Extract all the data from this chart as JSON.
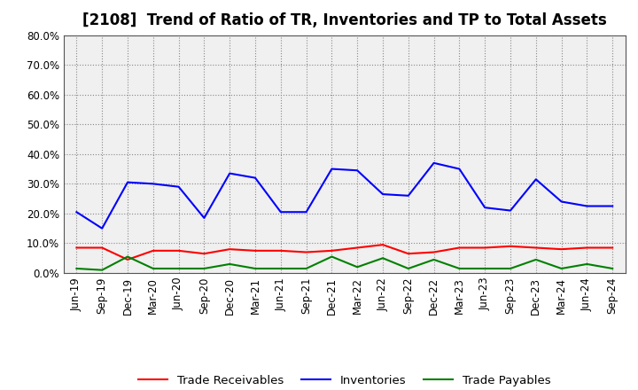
{
  "title": "[2108]  Trend of Ratio of TR, Inventories and TP to Total Assets",
  "x_labels": [
    "Jun-19",
    "Sep-19",
    "Dec-19",
    "Mar-20",
    "Jun-20",
    "Sep-20",
    "Dec-20",
    "Mar-21",
    "Jun-21",
    "Sep-21",
    "Dec-21",
    "Mar-22",
    "Jun-22",
    "Sep-22",
    "Dec-22",
    "Mar-23",
    "Jun-23",
    "Sep-23",
    "Dec-23",
    "Mar-24",
    "Jun-24",
    "Sep-24"
  ],
  "trade_receivables": [
    0.085,
    0.085,
    0.045,
    0.075,
    0.075,
    0.065,
    0.08,
    0.075,
    0.075,
    0.07,
    0.075,
    0.085,
    0.095,
    0.065,
    0.07,
    0.085,
    0.085,
    0.09,
    0.085,
    0.08,
    0.085,
    0.085
  ],
  "inventories": [
    0.205,
    0.15,
    0.305,
    0.3,
    0.29,
    0.185,
    0.335,
    0.32,
    0.205,
    0.205,
    0.35,
    0.345,
    0.265,
    0.26,
    0.37,
    0.35,
    0.22,
    0.21,
    0.315,
    0.24,
    0.225,
    0.225
  ],
  "trade_payables": [
    0.015,
    0.01,
    0.055,
    0.015,
    0.015,
    0.015,
    0.03,
    0.015,
    0.015,
    0.015,
    0.055,
    0.02,
    0.05,
    0.015,
    0.045,
    0.015,
    0.015,
    0.015,
    0.045,
    0.015,
    0.03,
    0.015
  ],
  "tr_color": "#ff0000",
  "inv_color": "#0000ff",
  "tp_color": "#008000",
  "background_color": "#ffffff",
  "plot_bg_color": "#f0f0f0",
  "grid_color": "#888888",
  "ylim": [
    0.0,
    0.8
  ],
  "yticks": [
    0.0,
    0.1,
    0.2,
    0.3,
    0.4,
    0.5,
    0.6,
    0.7,
    0.8
  ],
  "legend_labels": [
    "Trade Receivables",
    "Inventories",
    "Trade Payables"
  ],
  "title_fontsize": 12,
  "axis_fontsize": 8.5,
  "legend_fontsize": 9.5
}
